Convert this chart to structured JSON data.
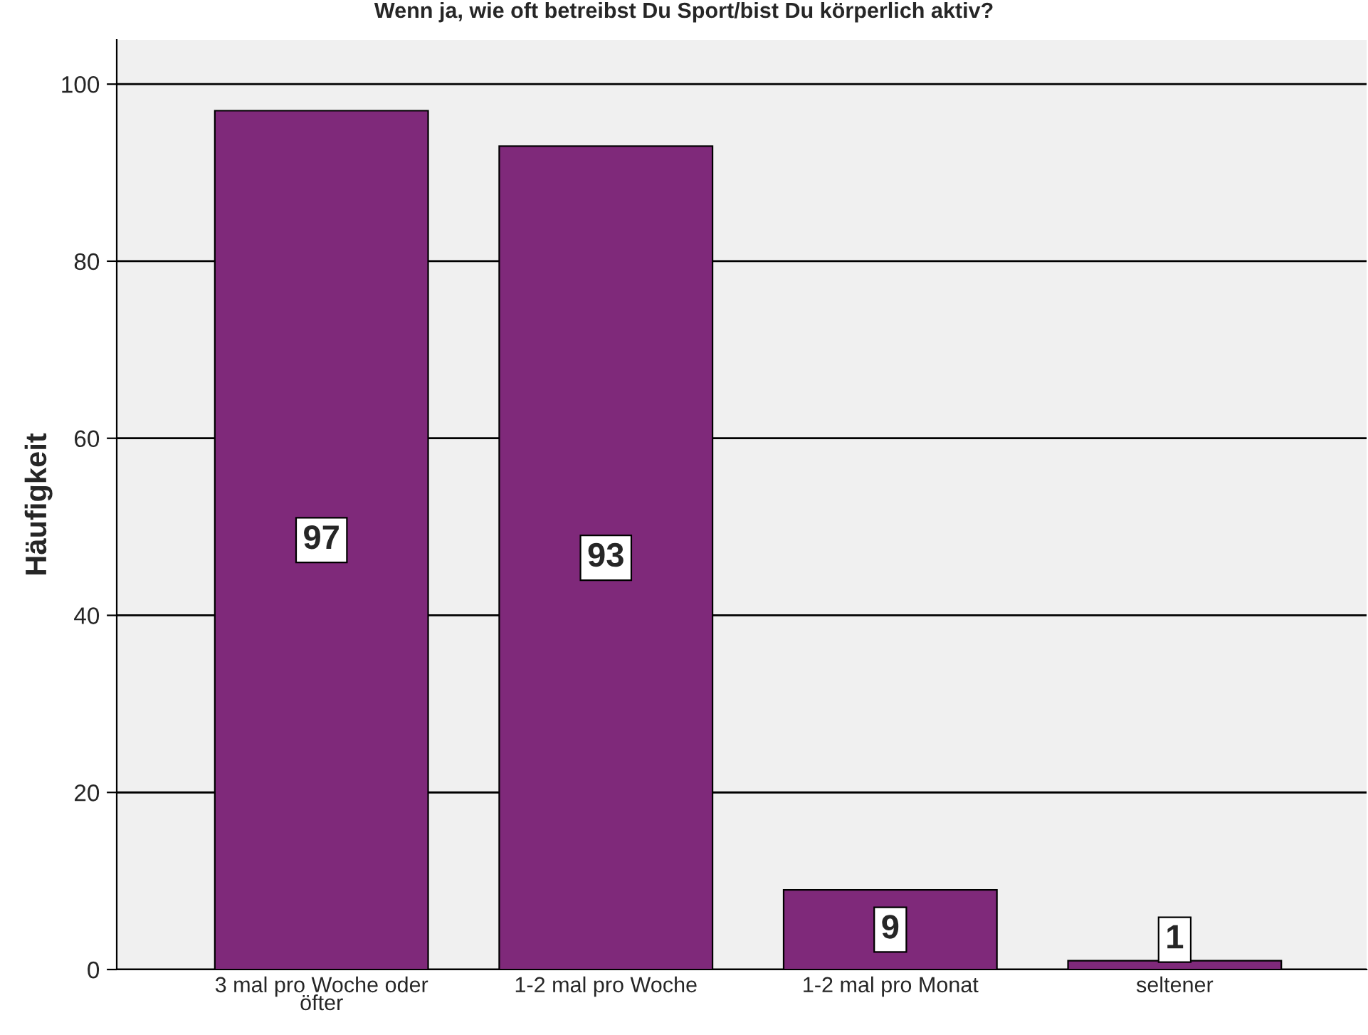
{
  "chart_data": {
    "type": "bar",
    "title": "Wenn ja, wie oft betreibst Du Sport/bist Du körperlich aktiv?",
    "ylabel": "Häufigkeit",
    "categories": [
      "3 mal pro Woche oder öfter",
      "1-2 mal pro Woche",
      "1-2 mal pro Monat",
      "seltener"
    ],
    "values": [
      97,
      93,
      9,
      1
    ],
    "color": "#7f297a",
    "data_labels": true,
    "ylim": [
      0,
      105
    ],
    "yticks": [
      0,
      20,
      40,
      60,
      80,
      100
    ],
    "grid": "y"
  }
}
